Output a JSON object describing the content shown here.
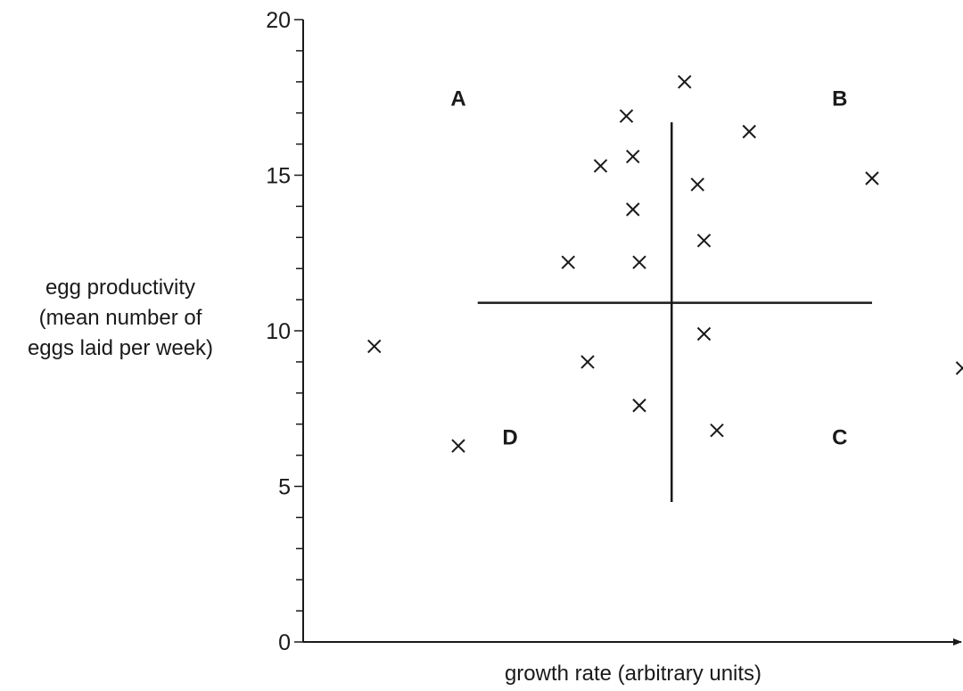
{
  "chart_data": {
    "type": "scatter",
    "xlabel": "growth rate (arbitrary units)",
    "ylabel_lines": [
      "egg productivity",
      "(mean number of",
      "eggs laid per week)"
    ],
    "ylim": [
      0,
      20
    ],
    "xlim": [
      0,
      10
    ],
    "y_ticks": [
      0,
      5,
      10,
      15,
      20
    ],
    "y_minor_step": 1,
    "grid": false,
    "divider": {
      "x": 5.7,
      "y": 10.9
    },
    "quadrant_labels": [
      {
        "label": "A",
        "x": 2.4,
        "y": 17.5
      },
      {
        "label": "B",
        "x": 8.3,
        "y": 17.5
      },
      {
        "label": "C",
        "x": 8.3,
        "y": 6.6
      },
      {
        "label": "D",
        "x": 3.2,
        "y": 6.6
      }
    ],
    "points": [
      {
        "x": 1.1,
        "y": 9.5
      },
      {
        "x": 2.4,
        "y": 6.3
      },
      {
        "x": 4.1,
        "y": 12.2
      },
      {
        "x": 4.4,
        "y": 9.0
      },
      {
        "x": 4.6,
        "y": 15.3
      },
      {
        "x": 5.0,
        "y": 16.9
      },
      {
        "x": 5.1,
        "y": 15.6
      },
      {
        "x": 5.1,
        "y": 13.9
      },
      {
        "x": 5.2,
        "y": 12.2
      },
      {
        "x": 5.2,
        "y": 7.6
      },
      {
        "x": 5.9,
        "y": 18.0
      },
      {
        "x": 6.1,
        "y": 14.7
      },
      {
        "x": 6.2,
        "y": 12.9
      },
      {
        "x": 6.2,
        "y": 9.9
      },
      {
        "x": 6.4,
        "y": 6.8
      },
      {
        "x": 6.9,
        "y": 16.4
      },
      {
        "x": 8.8,
        "y": 14.9
      },
      {
        "x": 10.2,
        "y": 8.8
      }
    ]
  }
}
